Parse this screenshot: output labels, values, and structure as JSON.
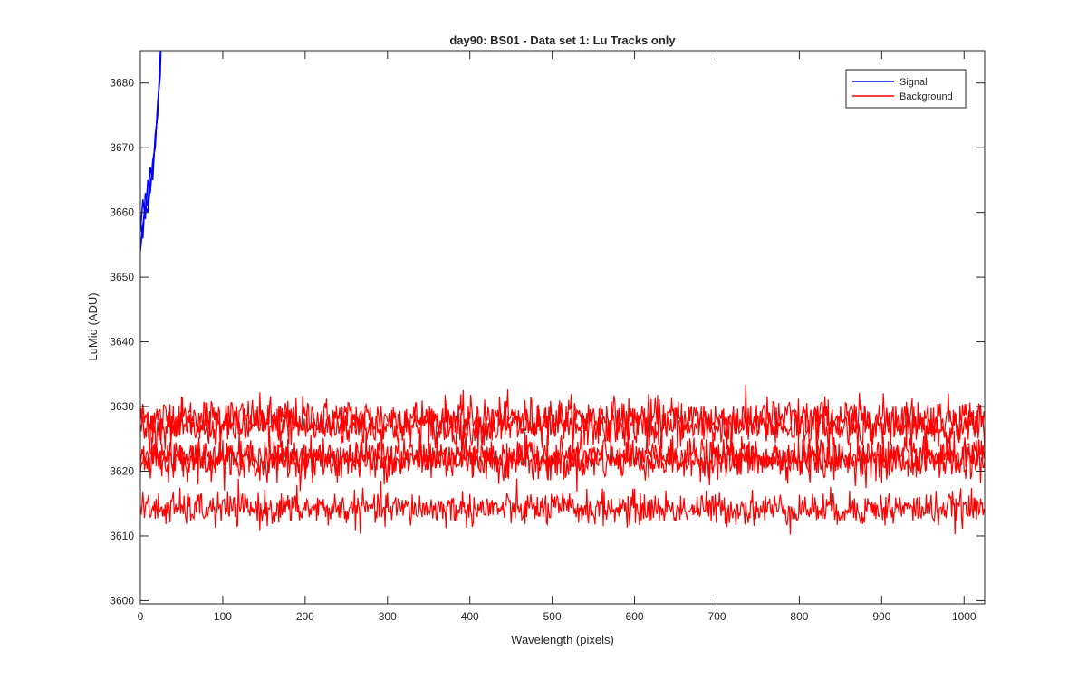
{
  "chart_data": {
    "type": "line",
    "title": "day90: BS01 - Data set 1: Lu Tracks only",
    "xlabel": "Wavelength (pixels)",
    "ylabel": "LuMid (ADU)",
    "xlim": [
      0,
      1025
    ],
    "ylim": [
      3599.5,
      3685
    ],
    "xticks": [
      0,
      100,
      200,
      300,
      400,
      500,
      600,
      700,
      800,
      900,
      1000
    ],
    "yticks": [
      3600,
      3610,
      3620,
      3630,
      3640,
      3650,
      3660,
      3670,
      3680
    ],
    "grid": false,
    "legend": {
      "location": "top-right",
      "entries": [
        {
          "label": "Signal",
          "color": "#0000ff"
        },
        {
          "label": "Background",
          "color": "#ff0000"
        }
      ]
    },
    "series": [
      {
        "name": "Signal",
        "color": "#0000ff",
        "traces": [
          {
            "x": [
              0,
              3,
              6,
              9,
              12,
              15,
              18,
              21,
              24,
              26
            ],
            "y": [
              3654,
              3658,
              3661,
              3660,
              3664,
              3667,
              3671,
              3676,
              3683,
              3690
            ]
          },
          {
            "x": [
              0,
              3,
              6,
              9,
              12,
              15,
              18,
              21,
              24,
              26
            ],
            "y": [
              3657,
              3662,
              3659,
              3665,
              3663,
              3668,
              3670,
              3677,
              3681,
              3690
            ]
          },
          {
            "x": [
              0,
              3,
              6,
              9,
              12,
              15,
              18,
              21,
              24,
              26
            ],
            "y": [
              3659,
              3656,
              3663,
              3661,
              3667,
              3665,
              3672,
              3675,
              3684,
              3690
            ]
          }
        ]
      },
      {
        "name": "Background",
        "color": "#ff0000",
        "traces": [
          {
            "mean": 3628.2,
            "noise": 1.6,
            "x_start": 0,
            "x_end": 1025
          },
          {
            "mean": 3626.8,
            "noise": 1.5,
            "x_start": 0,
            "x_end": 1025
          },
          {
            "mean": 3622.3,
            "noise": 1.4,
            "x_start": 0,
            "x_end": 1025
          },
          {
            "mean": 3621.6,
            "noise": 1.4,
            "x_start": 0,
            "x_end": 1025
          },
          {
            "mean": 3614.2,
            "noise": 1.3,
            "x_start": 0,
            "x_end": 1025
          }
        ]
      }
    ]
  }
}
